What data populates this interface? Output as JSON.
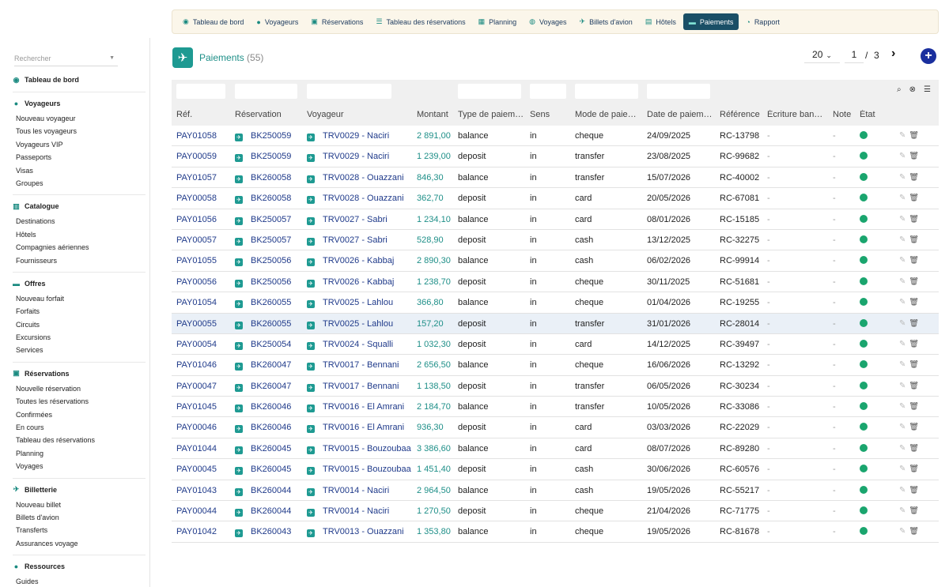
{
  "sidebar": {
    "search_placeholder": "Rechercher",
    "dashboard": "Tableau de bord",
    "sections": [
      {
        "title": "Voyageurs",
        "icon": "person-icon",
        "items": [
          "Nouveau voyageur",
          "Tous les voyageurs",
          "Voyageurs VIP",
          "Passeports",
          "Visas",
          "Groupes"
        ]
      },
      {
        "title": "Catalogue",
        "icon": "catalogue-icon",
        "items": [
          "Destinations",
          "Hôtels",
          "Compagnies aériennes",
          "Fournisseurs"
        ]
      },
      {
        "title": "Offres",
        "icon": "lock-icon",
        "items": [
          "Nouveau forfait",
          "Forfaits",
          "Circuits",
          "Excursions",
          "Services"
        ]
      },
      {
        "title": "Réservations",
        "icon": "clipboard-icon",
        "items": [
          "Nouvelle réservation",
          "Toutes les réservations",
          "Confirmées",
          "En cours",
          "Tableau des réservations",
          "Planning",
          "Voyages"
        ]
      },
      {
        "title": "Billetterie",
        "icon": "plane-icon",
        "items": [
          "Nouveau billet",
          "Billets d'avion",
          "Transferts",
          "Assurances voyage"
        ]
      },
      {
        "title": "Ressources",
        "icon": "people-icon",
        "items": [
          "Guides"
        ]
      }
    ]
  },
  "topnav": [
    {
      "label": "Tableau de bord",
      "icon": "dashboard-icon",
      "active": false
    },
    {
      "label": "Voyageurs",
      "icon": "person-icon",
      "active": false
    },
    {
      "label": "Réservations",
      "icon": "clipboard-icon",
      "active": false
    },
    {
      "label": "Tableau des réservations",
      "icon": "list-icon",
      "active": false
    },
    {
      "label": "Planning",
      "icon": "calendar-icon",
      "active": false
    },
    {
      "label": "Voyages",
      "icon": "globe-icon",
      "active": false
    },
    {
      "label": "Billets d'avion",
      "icon": "plane-icon",
      "active": false
    },
    {
      "label": "Hôtels",
      "icon": "building-icon",
      "active": false
    },
    {
      "label": "Paiements",
      "icon": "money-icon",
      "active": true
    },
    {
      "label": "Rapport",
      "icon": "chart-icon",
      "active": false
    }
  ],
  "header": {
    "title": "Paiements",
    "count": "(55)",
    "per_page": "20",
    "page_current": "1",
    "page_sep": "/",
    "page_total": "3"
  },
  "columns": [
    "Réf.",
    "Réservation",
    "Voyageur",
    "Montant",
    "Type de paiem…",
    "Sens",
    "Mode de paie…",
    "Date de paiem…",
    "Référence",
    "Écriture ban…",
    "Note",
    "État"
  ],
  "rows": [
    {
      "ref": "PAY01058",
      "resa": "BK250059",
      "voy": "TRV0029 - Naciri",
      "amt": "2 891,00",
      "type": "balance",
      "sens": "in",
      "mode": "cheque",
      "date": "24/09/2025",
      "refx": "RC-13798",
      "ecr": "-",
      "note": "-"
    },
    {
      "ref": "PAY00059",
      "resa": "BK250059",
      "voy": "TRV0029 - Naciri",
      "amt": "1 239,00",
      "type": "deposit",
      "sens": "in",
      "mode": "transfer",
      "date": "23/08/2025",
      "refx": "RC-99682",
      "ecr": "-",
      "note": "-"
    },
    {
      "ref": "PAY01057",
      "resa": "BK260058",
      "voy": "TRV0028 - Ouazzani",
      "amt": "846,30",
      "type": "balance",
      "sens": "in",
      "mode": "transfer",
      "date": "15/07/2026",
      "refx": "RC-40002",
      "ecr": "-",
      "note": "-"
    },
    {
      "ref": "PAY00058",
      "resa": "BK260058",
      "voy": "TRV0028 - Ouazzani",
      "amt": "362,70",
      "type": "deposit",
      "sens": "in",
      "mode": "card",
      "date": "20/05/2026",
      "refx": "RC-67081",
      "ecr": "-",
      "note": "-"
    },
    {
      "ref": "PAY01056",
      "resa": "BK250057",
      "voy": "TRV0027 - Sabri",
      "amt": "1 234,10",
      "type": "balance",
      "sens": "in",
      "mode": "card",
      "date": "08/01/2026",
      "refx": "RC-15185",
      "ecr": "-",
      "note": "-"
    },
    {
      "ref": "PAY00057",
      "resa": "BK250057",
      "voy": "TRV0027 - Sabri",
      "amt": "528,90",
      "type": "deposit",
      "sens": "in",
      "mode": "cash",
      "date": "13/12/2025",
      "refx": "RC-32275",
      "ecr": "-",
      "note": "-"
    },
    {
      "ref": "PAY01055",
      "resa": "BK250056",
      "voy": "TRV0026 - Kabbaj",
      "amt": "2 890,30",
      "type": "balance",
      "sens": "in",
      "mode": "cash",
      "date": "06/02/2026",
      "refx": "RC-99914",
      "ecr": "-",
      "note": "-"
    },
    {
      "ref": "PAY00056",
      "resa": "BK250056",
      "voy": "TRV0026 - Kabbaj",
      "amt": "1 238,70",
      "type": "deposit",
      "sens": "in",
      "mode": "cheque",
      "date": "30/11/2025",
      "refx": "RC-51681",
      "ecr": "-",
      "note": "-"
    },
    {
      "ref": "PAY01054",
      "resa": "BK260055",
      "voy": "TRV0025 - Lahlou",
      "amt": "366,80",
      "type": "balance",
      "sens": "in",
      "mode": "cheque",
      "date": "01/04/2026",
      "refx": "RC-19255",
      "ecr": "-",
      "note": "-"
    },
    {
      "ref": "PAY00055",
      "resa": "BK260055",
      "voy": "TRV0025 - Lahlou",
      "amt": "157,20",
      "type": "deposit",
      "sens": "in",
      "mode": "transfer",
      "date": "31/01/2026",
      "refx": "RC-28014",
      "ecr": "-",
      "note": "-"
    },
    {
      "ref": "PAY00054",
      "resa": "BK250054",
      "voy": "TRV0024 - Squalli",
      "amt": "1 032,30",
      "type": "deposit",
      "sens": "in",
      "mode": "card",
      "date": "14/12/2025",
      "refx": "RC-39497",
      "ecr": "-",
      "note": "-"
    },
    {
      "ref": "PAY01046",
      "resa": "BK260047",
      "voy": "TRV0017 - Bennani",
      "amt": "2 656,50",
      "type": "balance",
      "sens": "in",
      "mode": "cheque",
      "date": "16/06/2026",
      "refx": "RC-13292",
      "ecr": "-",
      "note": "-"
    },
    {
      "ref": "PAY00047",
      "resa": "BK260047",
      "voy": "TRV0017 - Bennani",
      "amt": "1 138,50",
      "type": "deposit",
      "sens": "in",
      "mode": "transfer",
      "date": "06/05/2026",
      "refx": "RC-30234",
      "ecr": "-",
      "note": "-"
    },
    {
      "ref": "PAY01045",
      "resa": "BK260046",
      "voy": "TRV0016 - El Amrani",
      "amt": "2 184,70",
      "type": "balance",
      "sens": "in",
      "mode": "transfer",
      "date": "10/05/2026",
      "refx": "RC-33086",
      "ecr": "-",
      "note": "-"
    },
    {
      "ref": "PAY00046",
      "resa": "BK260046",
      "voy": "TRV0016 - El Amrani",
      "amt": "936,30",
      "type": "deposit",
      "sens": "in",
      "mode": "card",
      "date": "03/03/2026",
      "refx": "RC-22029",
      "ecr": "-",
      "note": "-"
    },
    {
      "ref": "PAY01044",
      "resa": "BK260045",
      "voy": "TRV0015 - Bouzoubaa",
      "amt": "3 386,60",
      "type": "balance",
      "sens": "in",
      "mode": "card",
      "date": "08/07/2026",
      "refx": "RC-89280",
      "ecr": "-",
      "note": "-"
    },
    {
      "ref": "PAY00045",
      "resa": "BK260045",
      "voy": "TRV0015 - Bouzoubaa",
      "amt": "1 451,40",
      "type": "deposit",
      "sens": "in",
      "mode": "cash",
      "date": "30/06/2026",
      "refx": "RC-60576",
      "ecr": "-",
      "note": "-"
    },
    {
      "ref": "PAY01043",
      "resa": "BK260044",
      "voy": "TRV0014 - Naciri",
      "amt": "2 964,50",
      "type": "balance",
      "sens": "in",
      "mode": "cash",
      "date": "19/05/2026",
      "refx": "RC-55217",
      "ecr": "-",
      "note": "-"
    },
    {
      "ref": "PAY00044",
      "resa": "BK260044",
      "voy": "TRV0014 - Naciri",
      "amt": "1 270,50",
      "type": "deposit",
      "sens": "in",
      "mode": "cheque",
      "date": "21/04/2026",
      "refx": "RC-71775",
      "ecr": "-",
      "note": "-"
    },
    {
      "ref": "PAY01042",
      "resa": "BK260043",
      "voy": "TRV0013 - Ouazzani",
      "amt": "1 353,80",
      "type": "balance",
      "sens": "in",
      "mode": "cheque",
      "date": "19/05/2026",
      "refx": "RC-81678",
      "ecr": "-",
      "note": "-"
    }
  ],
  "highlight_row": 9,
  "colors": {
    "accent": "#1e9a92",
    "nav_active": "#1a4f66",
    "link": "#1f3a8a",
    "status_ok": "#1aa56e",
    "add": "#1a2f9e"
  }
}
